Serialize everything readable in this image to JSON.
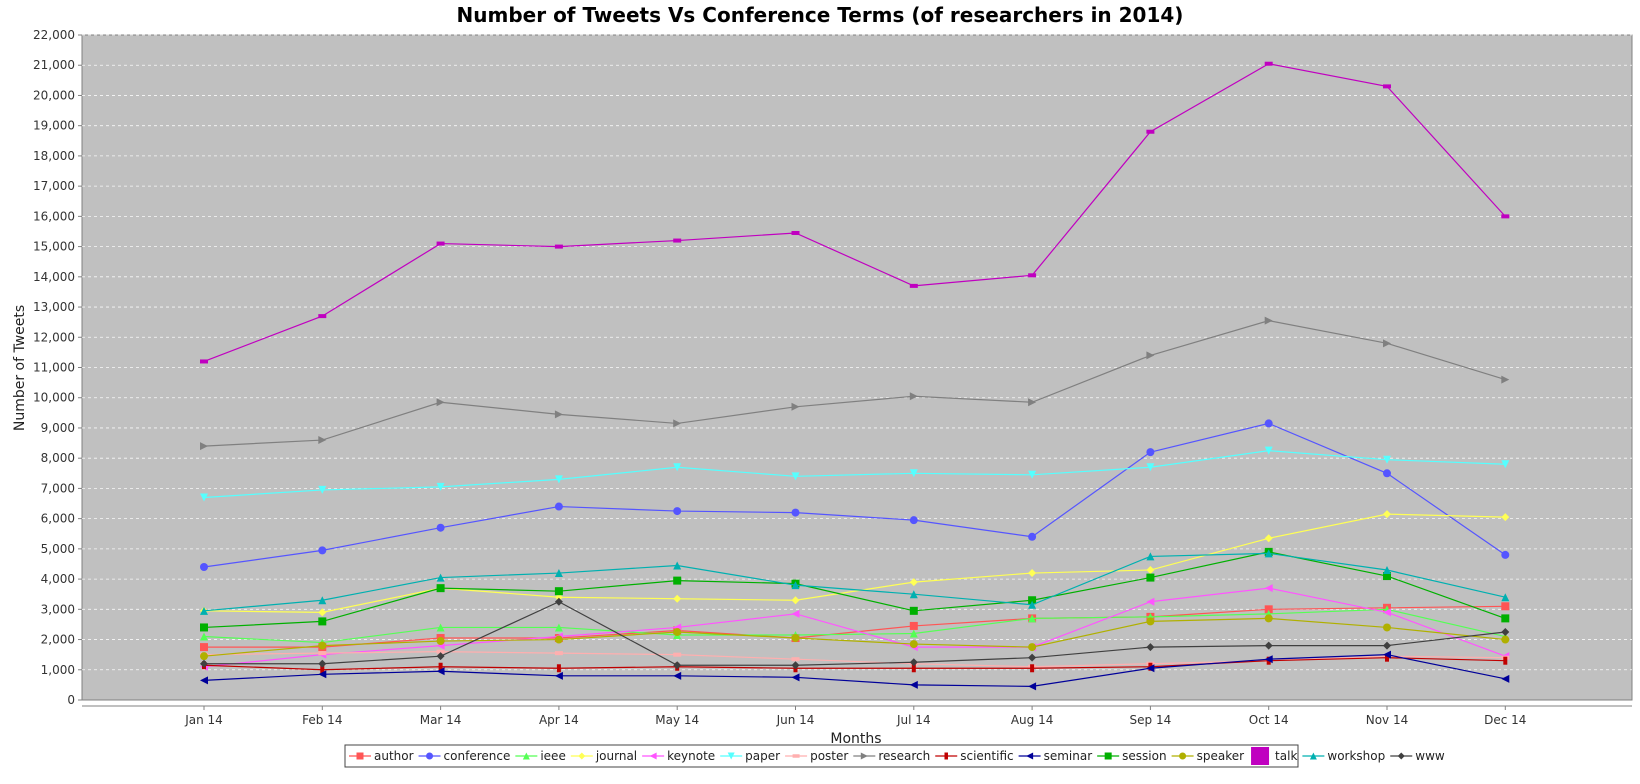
{
  "chart_data": {
    "type": "line",
    "title": "Number of Tweets Vs Conference Terms (of researchers in 2014)",
    "xlabel": "Months",
    "ylabel": "Number of Tweets",
    "categories": [
      "Jan 14",
      "Feb 14",
      "Mar 14",
      "Apr 14",
      "May 14",
      "Jun 14",
      "Jul 14",
      "Aug 14",
      "Sep 14",
      "Oct 14",
      "Nov 14",
      "Dec 14"
    ],
    "ylim": [
      0,
      22000
    ],
    "yticks": [
      0,
      1000,
      2000,
      3000,
      4000,
      5000,
      6000,
      7000,
      8000,
      9000,
      10000,
      11000,
      12000,
      13000,
      14000,
      15000,
      16000,
      17000,
      18000,
      19000,
      20000,
      21000,
      22000
    ],
    "ytick_labels": [
      "0",
      "1,000",
      "2,000",
      "3,000",
      "4,000",
      "5,000",
      "6,000",
      "7,000",
      "8,000",
      "9,000",
      "10,000",
      "11,000",
      "12,000",
      "13,000",
      "14,000",
      "15,000",
      "16,000",
      "17,000",
      "18,000",
      "19,000",
      "20,000",
      "21,000",
      "22,000"
    ],
    "grid": true,
    "legend_position": "bottom",
    "plot_background": "#c0c0c0",
    "series": [
      {
        "name": "author",
        "color": "#ff5555",
        "marker": "square",
        "values": [
          1750,
          1750,
          2050,
          2050,
          2300,
          2050,
          2450,
          2700,
          2750,
          3000,
          3050,
          3100
        ]
      },
      {
        "name": "conference",
        "color": "#5555ff",
        "marker": "circle",
        "values": [
          4400,
          4950,
          5700,
          6400,
          6250,
          6200,
          5950,
          5400,
          8200,
          9150,
          7500,
          4800
        ]
      },
      {
        "name": "ieee",
        "color": "#55ff55",
        "marker": "triangle-up",
        "values": [
          2100,
          1900,
          2400,
          2400,
          2150,
          2150,
          2200,
          2700,
          2750,
          2850,
          3000,
          2100
        ]
      },
      {
        "name": "journal",
        "color": "#ffff55",
        "marker": "diamond",
        "values": [
          2950,
          2900,
          3700,
          3400,
          3350,
          3300,
          3900,
          4200,
          4300,
          5350,
          6150,
          6050
        ]
      },
      {
        "name": "keynote",
        "color": "#ff55ff",
        "marker": "triangle-left",
        "values": [
          1100,
          1500,
          1800,
          2100,
          2400,
          2850,
          1750,
          1750,
          3250,
          3700,
          2900,
          1450
        ]
      },
      {
        "name": "paper",
        "color": "#55ffff",
        "marker": "triangle-down",
        "values": [
          6700,
          6950,
          7050,
          7300,
          7700,
          7400,
          7500,
          7450,
          7700,
          8250,
          7950,
          7800
        ]
      },
      {
        "name": "poster",
        "color": "#ffafaf",
        "marker": "rect-h",
        "values": [
          1500,
          1550,
          1600,
          1550,
          1500,
          1350,
          1200,
          1100,
          1200,
          1300,
          1450,
          1400
        ]
      },
      {
        "name": "research",
        "color": "#808080",
        "marker": "triangle-right",
        "values": [
          8400,
          8600,
          9850,
          9450,
          9150,
          9700,
          10050,
          9850,
          11400,
          12550,
          11800,
          10600
        ]
      },
      {
        "name": "scientific",
        "color": "#c00000",
        "marker": "rect-v",
        "values": [
          1150,
          1000,
          1100,
          1050,
          1100,
          1050,
          1050,
          1050,
          1100,
          1300,
          1400,
          1300
        ]
      },
      {
        "name": "seminar",
        "color": "#000099",
        "marker": "triangle-left",
        "values": [
          650,
          850,
          950,
          800,
          800,
          750,
          500,
          450,
          1050,
          1350,
          1500,
          700
        ]
      },
      {
        "name": "session",
        "color": "#00b000",
        "marker": "square",
        "values": [
          2400,
          2600,
          3700,
          3600,
          3950,
          3850,
          2950,
          3300,
          4050,
          4900,
          4100,
          2700
        ]
      },
      {
        "name": "speaker",
        "color": "#b0b000",
        "marker": "circle",
        "values": [
          1450,
          1800,
          1950,
          2000,
          2250,
          2050,
          1850,
          1750,
          2600,
          2700,
          2400,
          2000
        ]
      },
      {
        "name": "talk",
        "color": "#c000c0",
        "marker": "rect-h",
        "values": [
          11200,
          12700,
          15100,
          15000,
          15200,
          15450,
          13700,
          14050,
          18800,
          21050,
          20300,
          16000
        ]
      },
      {
        "name": "workshop",
        "color": "#00b0b0",
        "marker": "triangle-up",
        "values": [
          2950,
          3300,
          4050,
          4200,
          4450,
          3800,
          3500,
          3150,
          4750,
          4850,
          4300,
          3400
        ]
      },
      {
        "name": "www",
        "color": "#404040",
        "marker": "diamond",
        "values": [
          1200,
          1200,
          1450,
          3250,
          1150,
          1150,
          1250,
          1400,
          1750,
          1800,
          1800,
          2250
        ]
      }
    ]
  }
}
